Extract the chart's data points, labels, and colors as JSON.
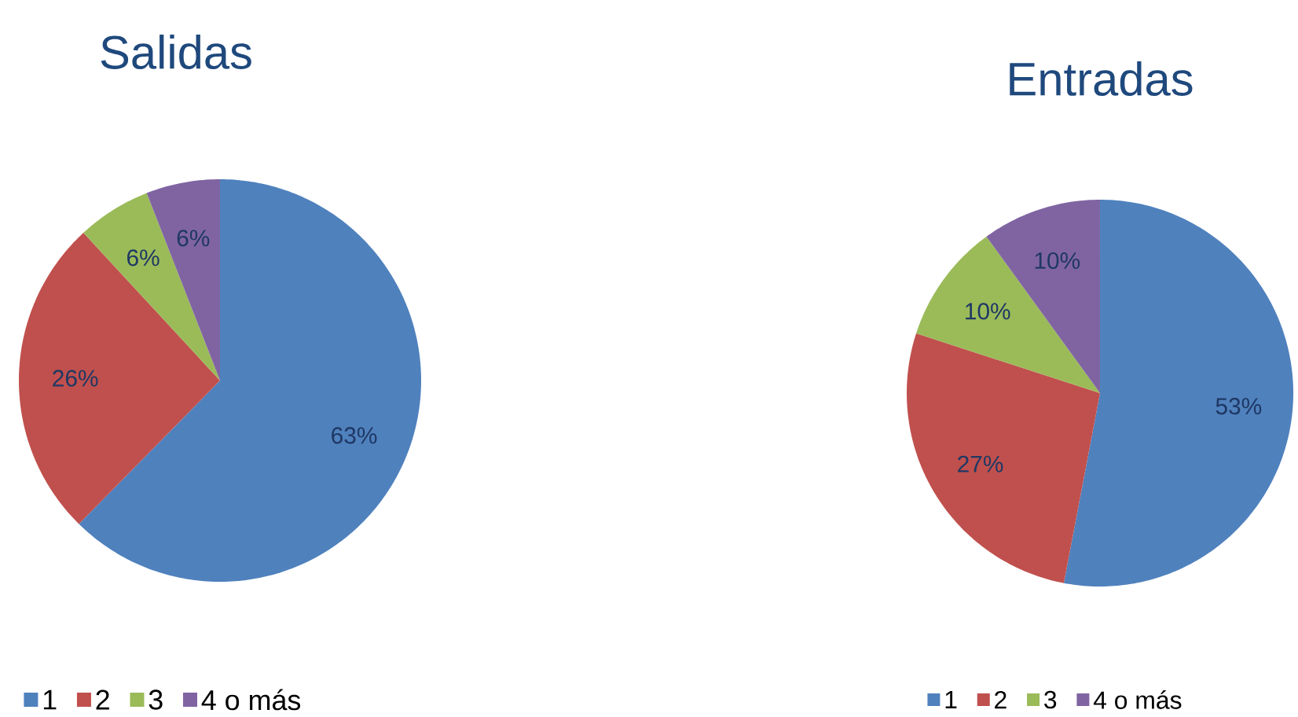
{
  "chart_data": [
    {
      "type": "pie",
      "title": "Salidas",
      "categories": [
        "1",
        "2",
        "3",
        "4 o más"
      ],
      "values": [
        63,
        26,
        6,
        6
      ],
      "value_labels": [
        "63%",
        "26%",
        "6%",
        "6%"
      ],
      "colors": [
        "#4f81bd",
        "#c0504d",
        "#9bbb59",
        "#8064a2"
      ],
      "legend": "bottom"
    },
    {
      "type": "pie",
      "title": "Entradas",
      "categories": [
        "1",
        "2",
        "3",
        "4 o más"
      ],
      "values": [
        53,
        27,
        10,
        10
      ],
      "value_labels": [
        "53%",
        "27%",
        "10%",
        "10%"
      ],
      "colors": [
        "#4f81bd",
        "#c0504d",
        "#9bbb59",
        "#8064a2"
      ],
      "legend": "bottom"
    }
  ]
}
